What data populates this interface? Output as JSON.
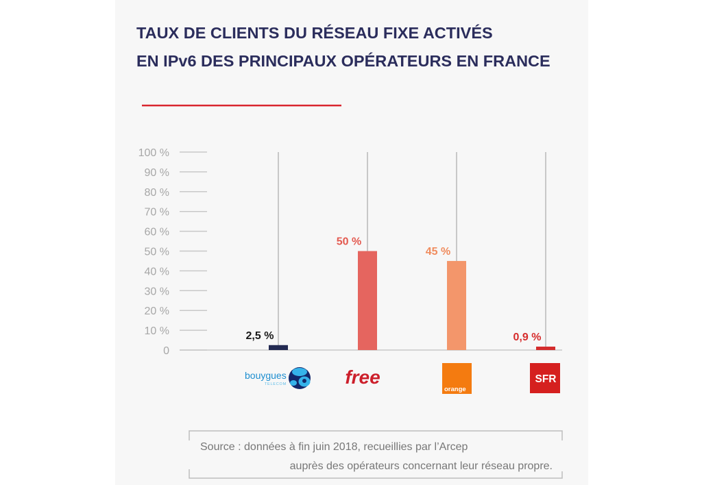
{
  "colors": {
    "title": "#2b2d5c",
    "accent_rule": "#d9262f",
    "panel_background": "#f7f7f7",
    "axis_lines": "#c8c8c8",
    "tick_labels": "#a7a7a7",
    "source_text": "#777777",
    "source_frame": "#bdbdbd"
  },
  "chart_data": {
    "type": "bar",
    "title": [
      "TAUX DE CLIENTS DU RÉSEAU FIXE ACTIVÉS",
      "EN IPv6 DES PRINCIPAUX OPÉRATEURS EN FRANCE"
    ],
    "xlabel": "",
    "ylabel": "",
    "categories": [
      "bouygues",
      "free",
      "orange",
      "SFR"
    ],
    "values": [
      2.5,
      50,
      45,
      0.9
    ],
    "data_labels": [
      "2,5 %",
      "50 %",
      "45 %",
      "0,9 %"
    ],
    "bar_colors": [
      "#232a52",
      "#e5655f",
      "#f3966b",
      "#d42c2d"
    ],
    "label_colors": [
      "#1a1a1a",
      "#e35a50",
      "#f08c5e",
      "#d62c2c"
    ],
    "ylim": [
      0,
      100
    ],
    "y_ticks": [
      0,
      10,
      20,
      30,
      40,
      50,
      60,
      70,
      80,
      90,
      100
    ],
    "y_tick_labels": [
      "0",
      "10 %",
      "20 %",
      "30 %",
      "40 %",
      "50 %",
      "60 %",
      "70 %",
      "80 %",
      "90 %",
      "100 %"
    ],
    "grid": false,
    "category_logos": [
      {
        "icon": "bouygues-telecom-logo",
        "subtext": "TELECOM",
        "text_color": "#1d8ed0",
        "subtext_color": "#5bbbe8",
        "mark_colors": [
          "#13286b",
          "#35b3ea"
        ]
      },
      {
        "icon": "free-logo",
        "text_color": "#cc1f2b"
      },
      {
        "icon": "orange-logo",
        "background": "#f47b10",
        "text_color": "#ffffff"
      },
      {
        "icon": "sfr-logo",
        "background": "#d5201f",
        "text_color": "#ffffff"
      }
    ]
  },
  "source": {
    "line1": "Source : données à fin juin 2018, recueillies par l’Arcep",
    "line2": "auprès des opérateurs concernant leur réseau propre."
  }
}
